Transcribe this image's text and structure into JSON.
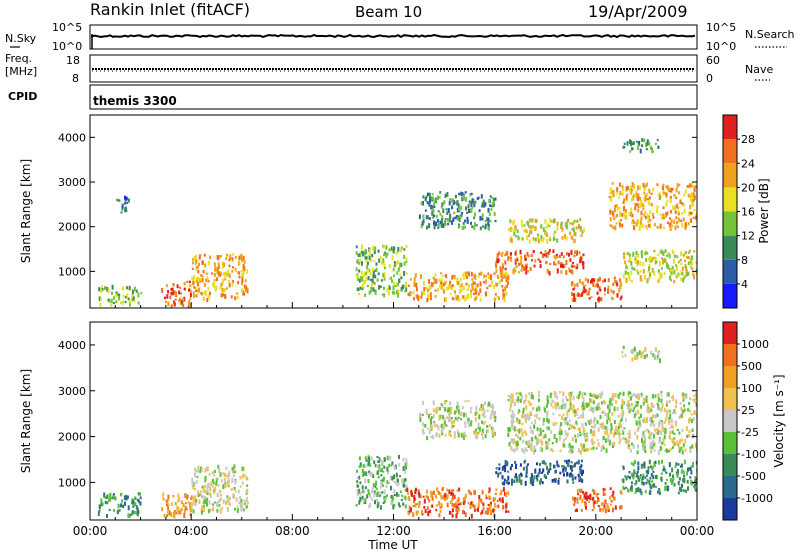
{
  "header": {
    "title": "Rankin Inlet (fitACF)",
    "beam": "Beam 10",
    "date": "19/Apr/2009"
  },
  "panels": {
    "nsky_label": "N.Sky",
    "nsearch_label": "N.Search",
    "nsky_ticks": [
      "10^5",
      "10^0"
    ],
    "freq_label": "Freq.",
    "freq_unit": "[MHz]",
    "nave_label": "Nave",
    "freq_ticks": [
      "18",
      "8"
    ],
    "nave_ticks": [
      "60",
      "0"
    ],
    "cpid_label": "CPID",
    "cpid_value": "themis 3300"
  },
  "chart_data": [
    {
      "type": "heatmap",
      "name": "power",
      "ylabel": "Slant Range [km]",
      "xlabel": "Time UT",
      "ylim": [
        180,
        4500
      ],
      "xlim": [
        0,
        24
      ],
      "x_ticks": [
        "00:00",
        "04:00",
        "08:00",
        "12:00",
        "16:00",
        "20:00",
        "00:00"
      ],
      "y_ticks": [
        1000,
        2000,
        3000,
        4000
      ],
      "colorbar": {
        "label": "Power [dB]",
        "levels": [
          "4",
          "8",
          "12",
          "16",
          "20",
          "24",
          "28"
        ],
        "colors": [
          "#1a1aff",
          "#2a5caa",
          "#3a8a5a",
          "#72c43a",
          "#e8e020",
          "#f0a020",
          "#f07020",
          "#e02020"
        ]
      },
      "regions": [
        {
          "t": [
            0.3,
            2.0
          ],
          "r": [
            300,
            700
          ],
          "level": 3
        },
        {
          "t": [
            2.8,
            4.0
          ],
          "r": [
            250,
            800
          ],
          "level": 6
        },
        {
          "t": [
            4.0,
            6.2
          ],
          "r": [
            400,
            1400
          ],
          "level": 5
        },
        {
          "t": [
            1.0,
            1.5
          ],
          "r": [
            2300,
            2700
          ],
          "level": 1
        },
        {
          "t": [
            10.5,
            12.5
          ],
          "r": [
            500,
            1600
          ],
          "level": 3
        },
        {
          "t": [
            12.5,
            16.5
          ],
          "r": [
            400,
            1000
          ],
          "level": 5
        },
        {
          "t": [
            13.0,
            16.0
          ],
          "r": [
            2000,
            2800
          ],
          "level": 2
        },
        {
          "t": [
            16.0,
            19.5
          ],
          "r": [
            1000,
            1500
          ],
          "level": 6
        },
        {
          "t": [
            16.5,
            19.5
          ],
          "r": [
            1700,
            2200
          ],
          "level": 4
        },
        {
          "t": [
            19.0,
            21.0
          ],
          "r": [
            400,
            900
          ],
          "level": 6
        },
        {
          "t": [
            20.5,
            24.0
          ],
          "r": [
            2000,
            3000
          ],
          "level": 5
        },
        {
          "t": [
            21.0,
            24.0
          ],
          "r": [
            800,
            1500
          ],
          "level": 4
        },
        {
          "t": [
            21.0,
            22.5
          ],
          "r": [
            3700,
            4000
          ],
          "level": 2
        }
      ]
    },
    {
      "type": "heatmap",
      "name": "velocity",
      "ylabel": "Slant Range [km]",
      "xlabel": "Time UT",
      "ylim": [
        180,
        4500
      ],
      "xlim": [
        0,
        24
      ],
      "x_ticks": [
        "00:00",
        "04:00",
        "08:00",
        "12:00",
        "16:00",
        "20:00",
        "00:00"
      ],
      "y_ticks": [
        1000,
        2000,
        3000,
        4000
      ],
      "colorbar": {
        "label": "Velocity [m s⁻¹]",
        "levels": [
          "1000",
          "500",
          "100",
          "25",
          "-25",
          "-100",
          "-500",
          "-1000"
        ],
        "colors": [
          "#1a3aa0",
          "#2a6a8a",
          "#3a8a5a",
          "#5ac03a",
          "#c8c8c8",
          "#f0c050",
          "#f0a020",
          "#f07020",
          "#e02020"
        ]
      },
      "regions": [
        {
          "t": [
            0.3,
            2.0
          ],
          "r": [
            300,
            800
          ],
          "level": 2
        },
        {
          "t": [
            2.8,
            4.0
          ],
          "r": [
            250,
            800
          ],
          "level": 6
        },
        {
          "t": [
            4.0,
            6.2
          ],
          "r": [
            400,
            1400
          ],
          "level": 4
        },
        {
          "t": [
            10.5,
            12.5
          ],
          "r": [
            500,
            1600
          ],
          "level": 3
        },
        {
          "t": [
            12.5,
            16.5
          ],
          "r": [
            300,
            900
          ],
          "level": 7
        },
        {
          "t": [
            13.0,
            16.0
          ],
          "r": [
            2000,
            2800
          ],
          "level": 4
        },
        {
          "t": [
            16.0,
            19.5
          ],
          "r": [
            1000,
            1500
          ],
          "level": 1
        },
        {
          "t": [
            16.5,
            24.0
          ],
          "r": [
            1700,
            3000
          ],
          "level": 4
        },
        {
          "t": [
            19.0,
            21.0
          ],
          "r": [
            400,
            900
          ],
          "level": 7
        },
        {
          "t": [
            21.0,
            24.0
          ],
          "r": [
            800,
            1500
          ],
          "level": 2
        },
        {
          "t": [
            21.0,
            22.5
          ],
          "r": [
            3700,
            4000
          ],
          "level": 4
        }
      ]
    }
  ]
}
